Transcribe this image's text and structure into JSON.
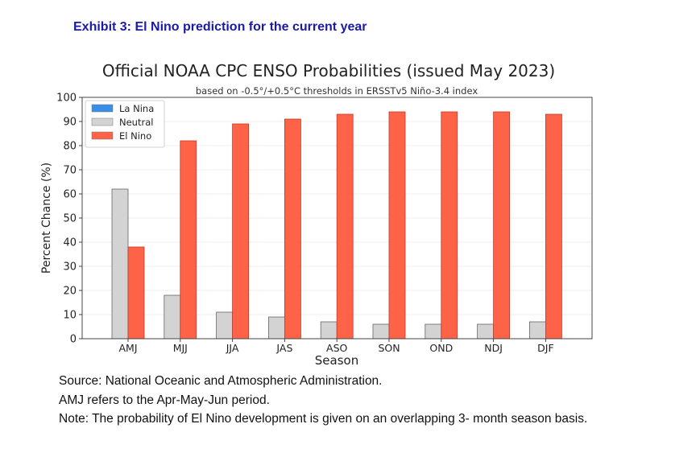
{
  "exhibit_title": "Exhibit 3: El Nino prediction for the current year",
  "notes": [
    "Source: National Oceanic and Atmospheric Administration.",
    "AMJ refers to the Apr-May-Jun period.",
    "Note: The probability of El Nino development is given on an overlapping 3- month season basis."
  ],
  "chart_data": {
    "type": "bar",
    "title": "Official NOAA CPC ENSO Probabilities (issued May 2023)",
    "subtitle": "based on -0.5°/+0.5°C thresholds in ERSSTv5 Niño-3.4 index",
    "xlabel": "Season",
    "ylabel": "Percent Chance (%)",
    "ylim": [
      0,
      100
    ],
    "yticks": [
      0,
      10,
      20,
      30,
      40,
      50,
      60,
      70,
      80,
      90,
      100
    ],
    "grid": true,
    "legend_position": "top-left",
    "categories": [
      "AMJ",
      "MJJ",
      "JJA",
      "JAS",
      "ASO",
      "SON",
      "OND",
      "NDJ",
      "DJF"
    ],
    "series": [
      {
        "name": "La Nina",
        "color": "#3a8ee6",
        "values": [
          0,
          0,
          0,
          0,
          0,
          0,
          0,
          0,
          0
        ]
      },
      {
        "name": "Neutral",
        "color": "#d3d3d3",
        "values": [
          62,
          18,
          11,
          9,
          7,
          6,
          6,
          6,
          7
        ]
      },
      {
        "name": "El Nino",
        "color": "#ff6347",
        "values": [
          38,
          82,
          89,
          91,
          93,
          94,
          94,
          94,
          93
        ]
      }
    ]
  }
}
